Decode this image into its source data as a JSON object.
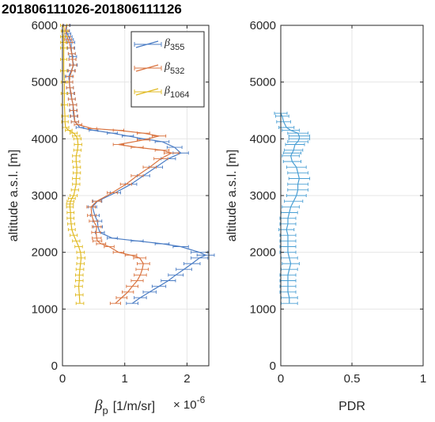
{
  "title": "201806111026-201806111126",
  "chart_data": [
    {
      "type": "line",
      "panel": "backscatter",
      "xlabel": "β",
      "xlabel_sub": "p",
      "xlabel_unit": "[1/m/sr]",
      "x_multiplier": "× 10",
      "x_multiplier_exp": "-6",
      "ylabel": "altitude a.s.l. [m]",
      "xlim": [
        0,
        2.35
      ],
      "ylim": [
        0,
        6000
      ],
      "xticks": [
        "0",
        "1",
        "2"
      ],
      "xtick_values": [
        0,
        1,
        2
      ],
      "yticks": [
        "0",
        "1000",
        "2000",
        "3000",
        "4000",
        "5000",
        "6000"
      ],
      "ytick_values": [
        0,
        1000,
        2000,
        3000,
        4000,
        5000,
        6000
      ],
      "grid": true,
      "legend_position": "top-right",
      "series": [
        {
          "name_symbol": "β",
          "name_sub": "355",
          "color": "#4a7cc4",
          "x": [
            1.12,
            1.25,
            1.4,
            1.55,
            1.7,
            1.82,
            1.95,
            2.08,
            2.2,
            2.3,
            2.2,
            1.9,
            1.6,
            1.2,
            0.8,
            0.6,
            0.57,
            0.56,
            0.52,
            0.48,
            0.56,
            0.85,
            1.1,
            1.3,
            1.5,
            1.7,
            1.9,
            1.8,
            1.6,
            1.3,
            1.05,
            0.8,
            0.5,
            0.28,
            0.2,
            0.18,
            0.17,
            0.17,
            0.15,
            0.13,
            0.12,
            0.11,
            0.1,
            0.14,
            0.18,
            0.16,
            0.17,
            0.15,
            0.14,
            0.14,
            0.12,
            0.1,
            0.08,
            0.06,
            0.07
          ],
          "y": [
            1100,
            1200,
            1300,
            1400,
            1500,
            1600,
            1700,
            1800,
            1900,
            1950,
            2000,
            2100,
            2150,
            2200,
            2250,
            2350,
            2450,
            2550,
            2650,
            2800,
            2900,
            3050,
            3200,
            3350,
            3500,
            3650,
            3750,
            3850,
            3950,
            4000,
            4050,
            4100,
            4150,
            4200,
            4300,
            4400,
            4500,
            4600,
            4700,
            4800,
            4900,
            5000,
            5100,
            5200,
            5300,
            5400,
            5450,
            5500,
            5600,
            5700,
            5750,
            5800,
            5850,
            5900,
            6000
          ]
        },
        {
          "name_symbol": "β",
          "name_sub": "532",
          "color": "#d9733f",
          "x": [
            0.85,
            0.95,
            1.05,
            1.12,
            1.2,
            1.25,
            1.28,
            1.3,
            1.24,
            1.1,
            0.9,
            0.75,
            0.62,
            0.56,
            0.55,
            0.54,
            0.55,
            0.5,
            0.47,
            0.46,
            0.55,
            0.8,
            1.02,
            1.2,
            1.4,
            1.58,
            1.75,
            1.6,
            1.2,
            0.9,
            1.3,
            1.55,
            1.3,
            0.9,
            0.48,
            0.25,
            0.2,
            0.19,
            0.18,
            0.17,
            0.15,
            0.14,
            0.12,
            0.11,
            0.12,
            0.15,
            0.17,
            0.16,
            0.15,
            0.13,
            0.11,
            0.09,
            0.07,
            0.05,
            0.06
          ],
          "y": [
            1100,
            1200,
            1300,
            1400,
            1500,
            1600,
            1700,
            1800,
            1900,
            1950,
            2000,
            2100,
            2150,
            2200,
            2250,
            2350,
            2450,
            2550,
            2650,
            2800,
            2900,
            3050,
            3200,
            3350,
            3500,
            3650,
            3750,
            3800,
            3850,
            3900,
            3980,
            4050,
            4100,
            4150,
            4180,
            4250,
            4300,
            4400,
            4500,
            4600,
            4700,
            4800,
            4900,
            5000,
            5100,
            5200,
            5300,
            5400,
            5500,
            5600,
            5700,
            5750,
            5800,
            5900,
            6000
          ]
        },
        {
          "name_symbol": "β",
          "name_sub": "1064",
          "color": "#e0b91f",
          "x": [
            0.28,
            0.27,
            0.26,
            0.27,
            0.27,
            0.28,
            0.29,
            0.3,
            0.29,
            0.26,
            0.22,
            0.18,
            0.15,
            0.14,
            0.13,
            0.13,
            0.12,
            0.12,
            0.13,
            0.15,
            0.18,
            0.2,
            0.22,
            0.22,
            0.23,
            0.23,
            0.22,
            0.22,
            0.24,
            0.25,
            0.24,
            0.22,
            0.18,
            0.1,
            0.05,
            0.04,
            0.04,
            0.03,
            0.03,
            0.03,
            0.02,
            0.02,
            0.02,
            0.02,
            0.02,
            0.03,
            0.02
          ],
          "y": [
            1100,
            1250,
            1400,
            1500,
            1600,
            1700,
            1800,
            1900,
            2000,
            2100,
            2200,
            2300,
            2400,
            2500,
            2600,
            2700,
            2800,
            2850,
            2900,
            2950,
            3000,
            3100,
            3200,
            3300,
            3400,
            3500,
            3600,
            3700,
            3800,
            3900,
            4000,
            4050,
            4100,
            4150,
            4200,
            4300,
            4400,
            4600,
            4800,
            5000,
            5200,
            5400,
            5600,
            5700,
            5800,
            5900,
            6000
          ]
        }
      ]
    },
    {
      "type": "line",
      "panel": "pdr",
      "xlabel": "PDR",
      "ylabel": "altitude a.s.l. [m]",
      "xlim": [
        0,
        1
      ],
      "ylim": [
        0,
        6000
      ],
      "xticks": [
        "0",
        "0.5",
        "1"
      ],
      "xtick_values": [
        0,
        0.5,
        1
      ],
      "yticks": [
        "0",
        "1000",
        "2000",
        "3000",
        "4000",
        "5000",
        "6000"
      ],
      "ytick_values": [
        0,
        1000,
        2000,
        3000,
        4000,
        5000,
        6000
      ],
      "grid": true,
      "series": [
        {
          "color": "#4a9fd4",
          "x": [
            0.06,
            0.06,
            0.05,
            0.05,
            0.05,
            0.05,
            0.06,
            0.07,
            0.06,
            0.05,
            0.05,
            0.05,
            0.05,
            0.04,
            0.05,
            0.05,
            0.06,
            0.07,
            0.09,
            0.11,
            0.12,
            0.12,
            0.13,
            0.12,
            0.11,
            0.08,
            0.07,
            0.08,
            0.09,
            0.1,
            0.12,
            0.13,
            0.13,
            0.12,
            0.07,
            0.04,
            0.02,
            0.01,
            0.0
          ],
          "y": [
            1100,
            1200,
            1300,
            1400,
            1500,
            1600,
            1700,
            1800,
            1900,
            2000,
            2100,
            2200,
            2300,
            2400,
            2500,
            2600,
            2700,
            2800,
            2900,
            3000,
            3100,
            3200,
            3300,
            3400,
            3500,
            3600,
            3700,
            3750,
            3800,
            3900,
            3950,
            4000,
            4050,
            4100,
            4150,
            4200,
            4300,
            4400,
            4450
          ]
        }
      ]
    }
  ]
}
